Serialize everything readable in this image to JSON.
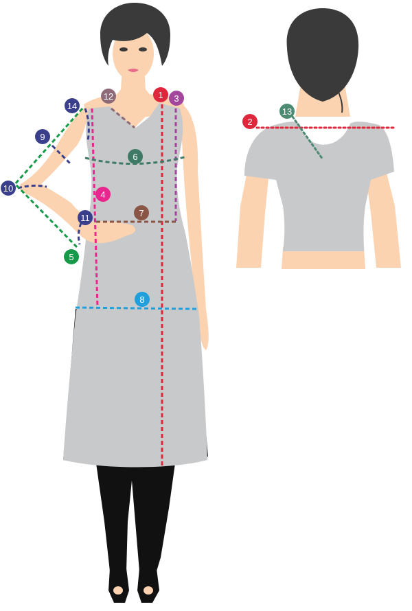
{
  "colors": {
    "m1": "#e0263a",
    "m2": "#e0263a",
    "m3": "#a2479c",
    "m4": "#e8268e",
    "m5": "#149a48",
    "m6": "#3f7a66",
    "m7": "#8b5546",
    "m8": "#1fa0dc",
    "m9": "#3a3f8c",
    "m10": "#3a3f8c",
    "m11": "#3a3f8c",
    "m12": "#8e6a78",
    "m13": "#4c8a72",
    "m14": "#3a3f8c",
    "garment": "#c8c9cb",
    "skin": "#fbd3b0",
    "hair": "#3a3a3a",
    "leggings": "#111111"
  },
  "markers": {
    "m1": "1",
    "m2": "2",
    "m3": "3",
    "m4": "4",
    "m5": "5",
    "m6": "6",
    "m7": "7",
    "m8": "8",
    "m9": "9",
    "m10": "10",
    "m11": "11",
    "m12": "12",
    "m13": "13",
    "m14": "14"
  }
}
